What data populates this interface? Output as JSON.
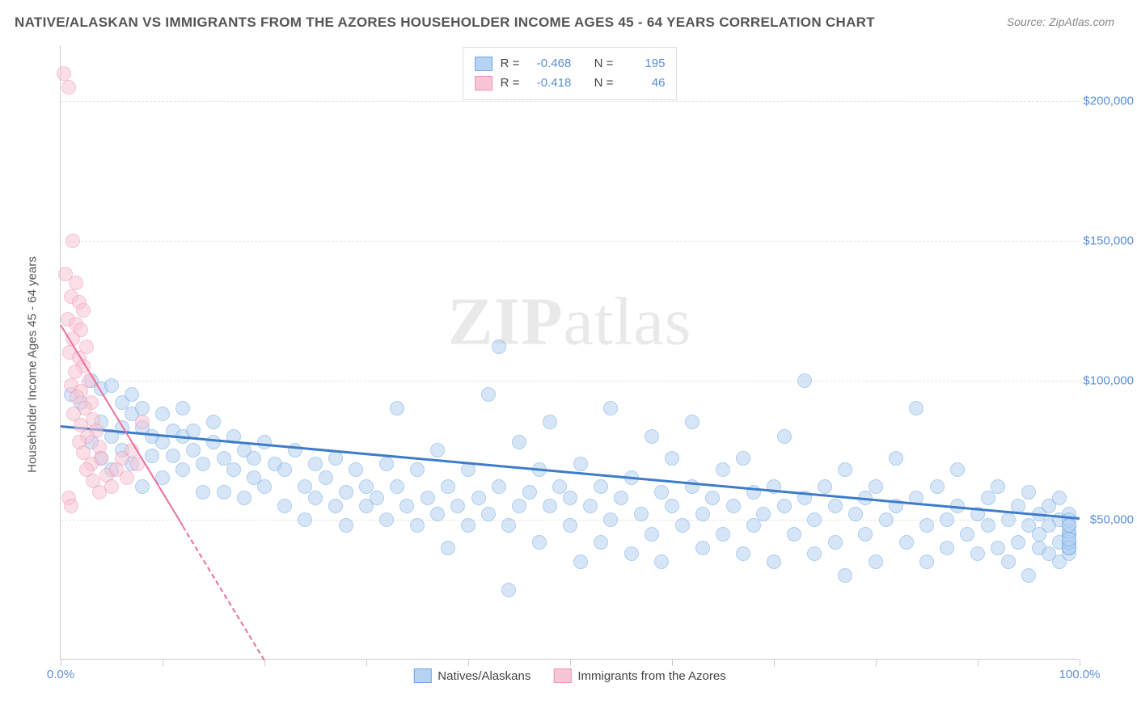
{
  "title": "NATIVE/ALASKAN VS IMMIGRANTS FROM THE AZORES HOUSEHOLDER INCOME AGES 45 - 64 YEARS CORRELATION CHART",
  "source_label": "Source: ",
  "source_value": "ZipAtlas.com",
  "watermark_a": "ZIP",
  "watermark_b": "atlas",
  "chart": {
    "type": "scatter",
    "background_color": "#ffffff",
    "grid_color": "#e4e4e4",
    "axis_color": "#cccccc",
    "yaxis_title": "Householder Income Ages 45 - 64 years",
    "xlim": [
      0,
      100
    ],
    "ylim": [
      0,
      220000
    ],
    "xtick_positions": [
      0,
      10,
      20,
      30,
      40,
      50,
      60,
      70,
      80,
      90,
      100
    ],
    "xtick_labels": {
      "0": "0.0%",
      "100": "100.0%"
    },
    "ytick_positions": [
      50000,
      100000,
      150000,
      200000
    ],
    "ytick_labels": {
      "50000": "$50,000",
      "100000": "$100,000",
      "150000": "$150,000",
      "200000": "$200,000"
    },
    "marker_radius": 9,
    "marker_stroke_width": 1.5,
    "series": [
      {
        "name": "Natives/Alaskans",
        "fill_color": "#b7d3f2",
        "stroke_color": "#6ca7e6",
        "fill_opacity": 0.55,
        "R_label": "R = ",
        "R_value": "-0.468",
        "N_label": "N = ",
        "N_value": "195",
        "trend": {
          "x1": 0,
          "y1": 84000,
          "x2": 100,
          "y2": 51000,
          "color": "#3d7cc9",
          "width": 3,
          "dashed": false
        },
        "points": [
          [
            1,
            95000
          ],
          [
            2,
            92000
          ],
          [
            3,
            100000
          ],
          [
            3,
            78000
          ],
          [
            4,
            97000
          ],
          [
            4,
            85000
          ],
          [
            4,
            72000
          ],
          [
            5,
            98000
          ],
          [
            5,
            80000
          ],
          [
            5,
            68000
          ],
          [
            6,
            92000
          ],
          [
            6,
            83000
          ],
          [
            6,
            75000
          ],
          [
            7,
            88000
          ],
          [
            7,
            95000
          ],
          [
            7,
            70000
          ],
          [
            8,
            83000
          ],
          [
            8,
            62000
          ],
          [
            8,
            90000
          ],
          [
            9,
            80000
          ],
          [
            9,
            73000
          ],
          [
            10,
            88000
          ],
          [
            10,
            78000
          ],
          [
            10,
            65000
          ],
          [
            11,
            82000
          ],
          [
            11,
            73000
          ],
          [
            12,
            80000
          ],
          [
            12,
            68000
          ],
          [
            12,
            90000
          ],
          [
            13,
            75000
          ],
          [
            13,
            82000
          ],
          [
            14,
            70000
          ],
          [
            14,
            60000
          ],
          [
            15,
            78000
          ],
          [
            15,
            85000
          ],
          [
            16,
            72000
          ],
          [
            16,
            60000
          ],
          [
            17,
            68000
          ],
          [
            17,
            80000
          ],
          [
            18,
            75000
          ],
          [
            18,
            58000
          ],
          [
            19,
            72000
          ],
          [
            19,
            65000
          ],
          [
            20,
            62000
          ],
          [
            20,
            78000
          ],
          [
            21,
            70000
          ],
          [
            22,
            68000
          ],
          [
            22,
            55000
          ],
          [
            23,
            75000
          ],
          [
            24,
            62000
          ],
          [
            24,
            50000
          ],
          [
            25,
            70000
          ],
          [
            25,
            58000
          ],
          [
            26,
            65000
          ],
          [
            27,
            72000
          ],
          [
            27,
            55000
          ],
          [
            28,
            60000
          ],
          [
            28,
            48000
          ],
          [
            29,
            68000
          ],
          [
            30,
            55000
          ],
          [
            30,
            62000
          ],
          [
            31,
            58000
          ],
          [
            32,
            70000
          ],
          [
            32,
            50000
          ],
          [
            33,
            90000
          ],
          [
            33,
            62000
          ],
          [
            34,
            55000
          ],
          [
            35,
            48000
          ],
          [
            35,
            68000
          ],
          [
            36,
            58000
          ],
          [
            37,
            75000
          ],
          [
            37,
            52000
          ],
          [
            38,
            62000
          ],
          [
            38,
            40000
          ],
          [
            39,
            55000
          ],
          [
            40,
            68000
          ],
          [
            40,
            48000
          ],
          [
            41,
            58000
          ],
          [
            42,
            95000
          ],
          [
            42,
            52000
          ],
          [
            43,
            62000
          ],
          [
            43,
            112000
          ],
          [
            44,
            48000
          ],
          [
            44,
            25000
          ],
          [
            45,
            78000
          ],
          [
            45,
            55000
          ],
          [
            46,
            60000
          ],
          [
            47,
            68000
          ],
          [
            47,
            42000
          ],
          [
            48,
            55000
          ],
          [
            48,
            85000
          ],
          [
            49,
            62000
          ],
          [
            50,
            48000
          ],
          [
            50,
            58000
          ],
          [
            51,
            70000
          ],
          [
            51,
            35000
          ],
          [
            52,
            55000
          ],
          [
            53,
            62000
          ],
          [
            53,
            42000
          ],
          [
            54,
            90000
          ],
          [
            54,
            50000
          ],
          [
            55,
            58000
          ],
          [
            56,
            65000
          ],
          [
            56,
            38000
          ],
          [
            57,
            52000
          ],
          [
            58,
            80000
          ],
          [
            58,
            45000
          ],
          [
            59,
            60000
          ],
          [
            59,
            35000
          ],
          [
            60,
            55000
          ],
          [
            60,
            72000
          ],
          [
            61,
            48000
          ],
          [
            62,
            62000
          ],
          [
            62,
            85000
          ],
          [
            63,
            52000
          ],
          [
            63,
            40000
          ],
          [
            64,
            58000
          ],
          [
            65,
            68000
          ],
          [
            65,
            45000
          ],
          [
            66,
            55000
          ],
          [
            67,
            72000
          ],
          [
            67,
            38000
          ],
          [
            68,
            60000
          ],
          [
            68,
            48000
          ],
          [
            69,
            52000
          ],
          [
            70,
            62000
          ],
          [
            70,
            35000
          ],
          [
            71,
            55000
          ],
          [
            71,
            80000
          ],
          [
            72,
            45000
          ],
          [
            73,
            58000
          ],
          [
            73,
            100000
          ],
          [
            74,
            50000
          ],
          [
            74,
            38000
          ],
          [
            75,
            62000
          ],
          [
            76,
            55000
          ],
          [
            76,
            42000
          ],
          [
            77,
            68000
          ],
          [
            77,
            30000
          ],
          [
            78,
            52000
          ],
          [
            79,
            58000
          ],
          [
            79,
            45000
          ],
          [
            80,
            62000
          ],
          [
            80,
            35000
          ],
          [
            81,
            50000
          ],
          [
            82,
            55000
          ],
          [
            82,
            72000
          ],
          [
            83,
            42000
          ],
          [
            84,
            58000
          ],
          [
            84,
            90000
          ],
          [
            85,
            48000
          ],
          [
            85,
            35000
          ],
          [
            86,
            62000
          ],
          [
            87,
            50000
          ],
          [
            87,
            40000
          ],
          [
            88,
            55000
          ],
          [
            88,
            68000
          ],
          [
            89,
            45000
          ],
          [
            90,
            52000
          ],
          [
            90,
            38000
          ],
          [
            91,
            58000
          ],
          [
            91,
            48000
          ],
          [
            92,
            40000
          ],
          [
            92,
            62000
          ],
          [
            93,
            50000
          ],
          [
            93,
            35000
          ],
          [
            94,
            55000
          ],
          [
            94,
            42000
          ],
          [
            95,
            48000
          ],
          [
            95,
            60000
          ],
          [
            95,
            30000
          ],
          [
            96,
            52000
          ],
          [
            96,
            40000
          ],
          [
            96,
            45000
          ],
          [
            97,
            55000
          ],
          [
            97,
            38000
          ],
          [
            97,
            48000
          ],
          [
            98,
            42000
          ],
          [
            98,
            50000
          ],
          [
            98,
            35000
          ],
          [
            98,
            58000
          ],
          [
            99,
            45000
          ],
          [
            99,
            40000
          ],
          [
            99,
            48000
          ],
          [
            99,
            42000
          ],
          [
            99,
            52000
          ],
          [
            99,
            38000
          ],
          [
            99,
            45000
          ],
          [
            99,
            40000
          ],
          [
            99,
            50000
          ],
          [
            99,
            42000
          ],
          [
            99,
            46000
          ],
          [
            99,
            40000
          ],
          [
            99,
            48000
          ],
          [
            99,
            43000
          ]
        ]
      },
      {
        "name": "Immigrants from the Azores",
        "fill_color": "#f7c6d5",
        "stroke_color": "#ee94b2",
        "fill_opacity": 0.55,
        "R_label": "R = ",
        "R_value": "-0.418",
        "N_label": "N = ",
        "N_value": "46",
        "trend": {
          "x1": 0,
          "y1": 120000,
          "x2": 20,
          "y2": 0,
          "color": "#ec6f98",
          "width": 2.5,
          "dashed_from_x": 12
        },
        "points": [
          [
            0.3,
            210000
          ],
          [
            0.8,
            205000
          ],
          [
            1.2,
            150000
          ],
          [
            0.5,
            138000
          ],
          [
            1.5,
            135000
          ],
          [
            1.0,
            130000
          ],
          [
            1.8,
            128000
          ],
          [
            2.2,
            125000
          ],
          [
            0.7,
            122000
          ],
          [
            1.5,
            120000
          ],
          [
            2.0,
            118000
          ],
          [
            1.2,
            115000
          ],
          [
            2.5,
            112000
          ],
          [
            0.9,
            110000
          ],
          [
            1.8,
            108000
          ],
          [
            2.2,
            105000
          ],
          [
            1.4,
            103000
          ],
          [
            2.8,
            100000
          ],
          [
            1.0,
            98000
          ],
          [
            2.0,
            96000
          ],
          [
            1.6,
            94000
          ],
          [
            3.0,
            92000
          ],
          [
            2.4,
            90000
          ],
          [
            1.3,
            88000
          ],
          [
            3.2,
            86000
          ],
          [
            2.0,
            84000
          ],
          [
            3.5,
            82000
          ],
          [
            2.6,
            80000
          ],
          [
            1.8,
            78000
          ],
          [
            3.8,
            76000
          ],
          [
            2.2,
            74000
          ],
          [
            4.0,
            72000
          ],
          [
            3.0,
            70000
          ],
          [
            2.5,
            68000
          ],
          [
            4.5,
            66000
          ],
          [
            3.2,
            64000
          ],
          [
            5.0,
            62000
          ],
          [
            3.8,
            60000
          ],
          [
            6.0,
            72000
          ],
          [
            5.5,
            68000
          ],
          [
            7.0,
            75000
          ],
          [
            6.5,
            65000
          ],
          [
            8.0,
            85000
          ],
          [
            7.5,
            70000
          ],
          [
            0.8,
            58000
          ],
          [
            1.0,
            55000
          ]
        ]
      }
    ]
  }
}
